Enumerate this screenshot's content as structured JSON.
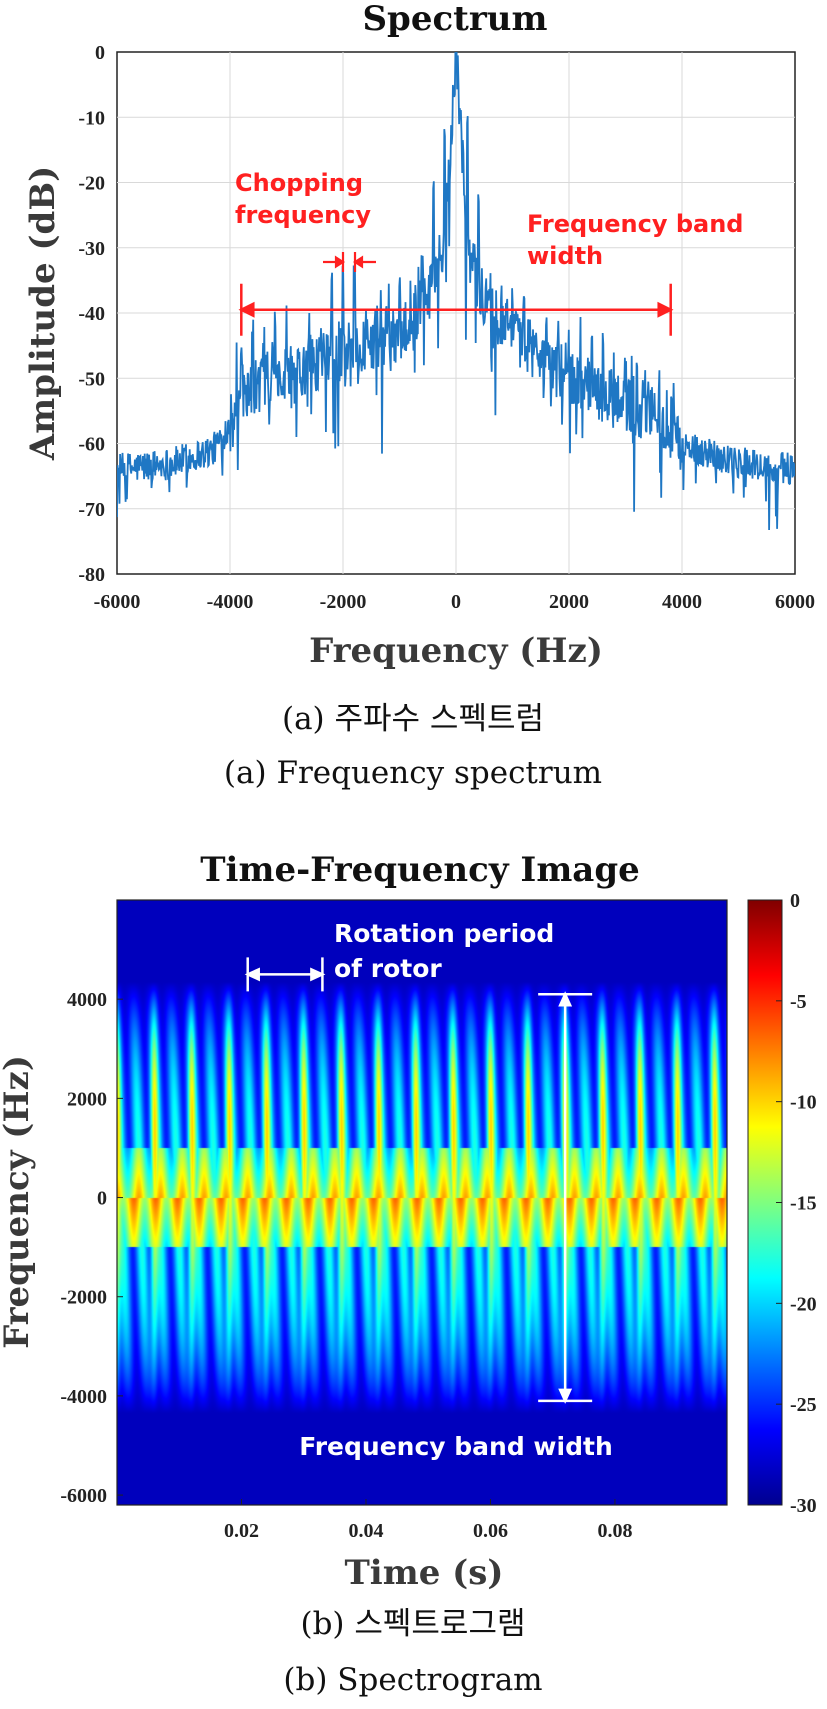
{
  "chart_data": [
    {
      "type": "line",
      "title": "Spectrum",
      "xlabel": "Frequency (Hz)",
      "ylabel": "Amplitude (dB)",
      "xlim": [
        -6000,
        6000
      ],
      "ylim": [
        -80,
        0
      ],
      "x_ticks": [
        -6000,
        -4000,
        -2000,
        0,
        2000,
        4000,
        6000
      ],
      "y_ticks": [
        0,
        -10,
        -20,
        -30,
        -40,
        -50,
        -60,
        -70,
        -80
      ],
      "grid": true,
      "series_color": "#1f77c4",
      "envelope": {
        "x": [
          -6000,
          -5000,
          -4300,
          -4000,
          -3800,
          -3000,
          -2000,
          -1000,
          -500,
          -200,
          0,
          200,
          500,
          1000,
          2000,
          3000,
          3800,
          4000,
          5000,
          6000
        ],
        "y": [
          -64,
          -63,
          -61,
          -57,
          -52,
          -49,
          -46,
          -43,
          -38,
          -30,
          0,
          -30,
          -38,
          -43,
          -50,
          -54,
          -57,
          -60,
          -63,
          -64
        ]
      },
      "peaks": [
        {
          "x": 0,
          "y": 0
        },
        {
          "x": -200,
          "y": -14
        },
        {
          "x": 200,
          "y": -12
        },
        {
          "x": -400,
          "y": -22
        },
        {
          "x": 400,
          "y": -24
        },
        {
          "x": -2200,
          "y": -36
        },
        {
          "x": -2000,
          "y": -35
        },
        {
          "x": -1800,
          "y": -36
        }
      ],
      "annotations": [
        {
          "text": [
            "Chopping",
            "frequency"
          ],
          "color": "#ff2020"
        },
        {
          "text": [
            "Frequency band",
            "width"
          ],
          "color": "#ff2020",
          "span_x": [
            -3800,
            3800
          ],
          "at_y": -39.5
        }
      ],
      "caption_kr": "(a) 주파수 스펙트럼",
      "caption_en": "(a)  Frequency  spectrum"
    },
    {
      "type": "heatmap",
      "title": "Time-Frequency Image",
      "xlabel": "Time (s)",
      "ylabel": "Frequency (Hz)",
      "xlim": [
        0,
        0.098
      ],
      "ylim": [
        -6200,
        6000
      ],
      "x_ticks": [
        0.02,
        0.04,
        0.06,
        0.08
      ],
      "y_ticks": [
        4000,
        2000,
        0,
        -2000,
        -4000,
        -6000
      ],
      "colorbar": {
        "min": -30,
        "max": 0,
        "ticks": [
          0,
          -5,
          -10,
          -15,
          -20,
          -25,
          -30
        ],
        "colormap": "jet"
      },
      "rotor_period_s": 0.012,
      "band_limits_hz": [
        -4100,
        4100
      ],
      "annotations": [
        {
          "text": [
            "Rotation period",
            "of rotor"
          ],
          "color": "#ffffff",
          "span_t": [
            0.021,
            0.033
          ],
          "at_hz": 4500
        },
        {
          "text": [
            "Frequency band width"
          ],
          "color": "#ffffff",
          "span_hz": [
            -4100,
            4100
          ],
          "at_t": 0.072
        }
      ],
      "caption_kr": "(b) 스펙트로그램",
      "caption_en": "(b)  Spectrogram"
    }
  ]
}
